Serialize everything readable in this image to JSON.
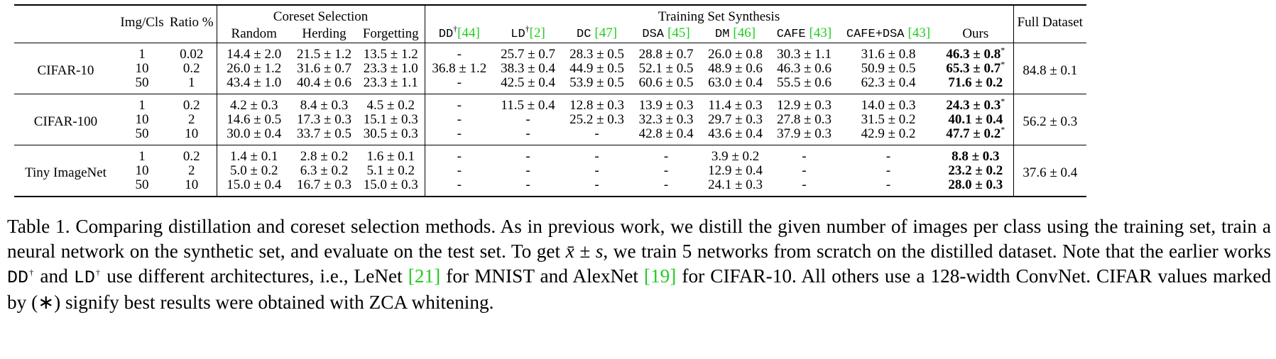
{
  "header": {
    "img_cls": "Img/Cls",
    "ratio": "Ratio %",
    "groups": [
      {
        "title": "Coreset Selection",
        "methods": [
          {
            "name": "Random"
          },
          {
            "name": "Herding"
          },
          {
            "name": "Forgetting"
          }
        ]
      },
      {
        "title": "Training Set Synthesis",
        "methods": [
          {
            "name": "DD",
            "sup": "†",
            "ref": "[44]",
            "mono": true
          },
          {
            "name": "LD",
            "sup": "†",
            "ref": "[2]",
            "mono": true
          },
          {
            "name": "DC",
            "ref": "[47]",
            "mono": true
          },
          {
            "name": "DSA",
            "ref": "[45]",
            "mono": true
          },
          {
            "name": "DM",
            "ref": "[46]",
            "mono": true
          },
          {
            "name": "CAFE",
            "ref": "[43]",
            "mono": true
          },
          {
            "name": "CAFE+DSA",
            "ref": "[43]",
            "mono": true
          },
          {
            "name": "Ours"
          }
        ]
      }
    ],
    "full": "Full Dataset"
  },
  "datasets": [
    {
      "name": "CIFAR-10",
      "full": "84.8 ± 0.1",
      "rows": [
        {
          "ipc": "1",
          "ratio": "0.02",
          "cells": [
            "14.4 ± 2.0",
            "21.5 ± 1.2",
            "13.5 ± 1.2",
            "-",
            "25.7 ± 0.7",
            "28.3 ± 0.5",
            "28.8 ± 0.7",
            "26.0 ± 0.8",
            "30.3 ± 1.1",
            "31.6 ± 0.8"
          ],
          "ours": "46.3 ± 0.8",
          "star": "*"
        },
        {
          "ipc": "10",
          "ratio": "0.2",
          "cells": [
            "26.0 ± 1.2",
            "31.6 ± 0.7",
            "23.3 ± 1.0",
            "36.8 ± 1.2",
            "38.3 ± 0.4",
            "44.9 ± 0.5",
            "52.1 ± 0.5",
            "48.9 ± 0.6",
            "46.3 ± 0.6",
            "50.9 ± 0.5"
          ],
          "ours": "65.3 ± 0.7",
          "star": "*"
        },
        {
          "ipc": "50",
          "ratio": "1",
          "cells": [
            "43.4 ± 1.0",
            "40.4 ± 0.6",
            "23.3 ± 1.1",
            "-",
            "42.5 ± 0.4",
            "53.9 ± 0.5",
            "60.6 ± 0.5",
            "63.0 ± 0.4",
            "55.5 ± 0.6",
            "62.3 ± 0.4"
          ],
          "ours": "71.6 ± 0.2"
        }
      ]
    },
    {
      "name": "CIFAR-100",
      "full": "56.2 ± 0.3",
      "rows": [
        {
          "ipc": "1",
          "ratio": "0.2",
          "cells": [
            "4.2 ± 0.3",
            "8.4 ± 0.3",
            "4.5 ± 0.2",
            "-",
            "11.5 ± 0.4",
            "12.8 ± 0.3",
            "13.9 ± 0.3",
            "11.4 ± 0.3",
            "12.9 ± 0.3",
            "14.0 ± 0.3"
          ],
          "ours": "24.3 ± 0.3",
          "star": "*"
        },
        {
          "ipc": "10",
          "ratio": "2",
          "cells": [
            "14.6 ± 0.5",
            "17.3 ± 0.3",
            "15.1 ± 0.3",
            "-",
            "-",
            "25.2 ± 0.3",
            "32.3 ± 0.3",
            "29.7 ± 0.3",
            "27.8 ± 0.3",
            "31.5 ± 0.2"
          ],
          "ours": "40.1 ± 0.4"
        },
        {
          "ipc": "50",
          "ratio": "10",
          "cells": [
            "30.0 ± 0.4",
            "33.7 ± 0.5",
            "30.5 ± 0.3",
            "-",
            "-",
            "-",
            "42.8 ± 0.4",
            "43.6 ± 0.4",
            "37.9 ± 0.3",
            "42.9 ± 0.2"
          ],
          "ours": "47.7 ± 0.2",
          "star": "*"
        }
      ]
    },
    {
      "name": "Tiny ImageNet",
      "full": "37.6 ± 0.4",
      "rows": [
        {
          "ipc": "1",
          "ratio": "0.2",
          "cells": [
            "1.4 ± 0.1",
            "2.8 ± 0.2",
            "1.6 ± 0.1",
            "-",
            "-",
            "-",
            "-",
            "3.9 ± 0.2",
            "-",
            "-"
          ],
          "ours": "8.8 ± 0.3"
        },
        {
          "ipc": "10",
          "ratio": "2",
          "cells": [
            "5.0 ± 0.2",
            "6.3 ± 0.2",
            "5.1 ± 0.2",
            "-",
            "-",
            "-",
            "-",
            "12.9 ± 0.4",
            "-",
            "-"
          ],
          "ours": "23.2 ± 0.2"
        },
        {
          "ipc": "50",
          "ratio": "10",
          "cells": [
            "15.0 ± 0.4",
            "16.7 ± 0.3",
            "15.0 ± 0.3",
            "-",
            "-",
            "-",
            "-",
            "24.1 ± 0.3",
            "-",
            "-"
          ],
          "ours": "28.0 ± 0.3"
        }
      ]
    }
  ],
  "caption": [
    "Table 1. Comparing distillation and coreset selection methods. As in previous work, we distill the given number of images per class using the training set, train a neural network on the synthetic set, and evaluate on the test set. To get ",
    "x̄ ± s",
    ", we train 5 networks from scratch on the distilled dataset. Note that the earlier works ",
    "DD",
    "†",
    " and ",
    "LD",
    "†",
    " use different architectures, i.e., LeNet ",
    "[21]",
    " for MNIST and AlexNet ",
    "[19]",
    " for CIFAR-10. All others use a 128-width ConvNet. CIFAR values marked by (∗) signify best results were obtained with ZCA whitening."
  ]
}
